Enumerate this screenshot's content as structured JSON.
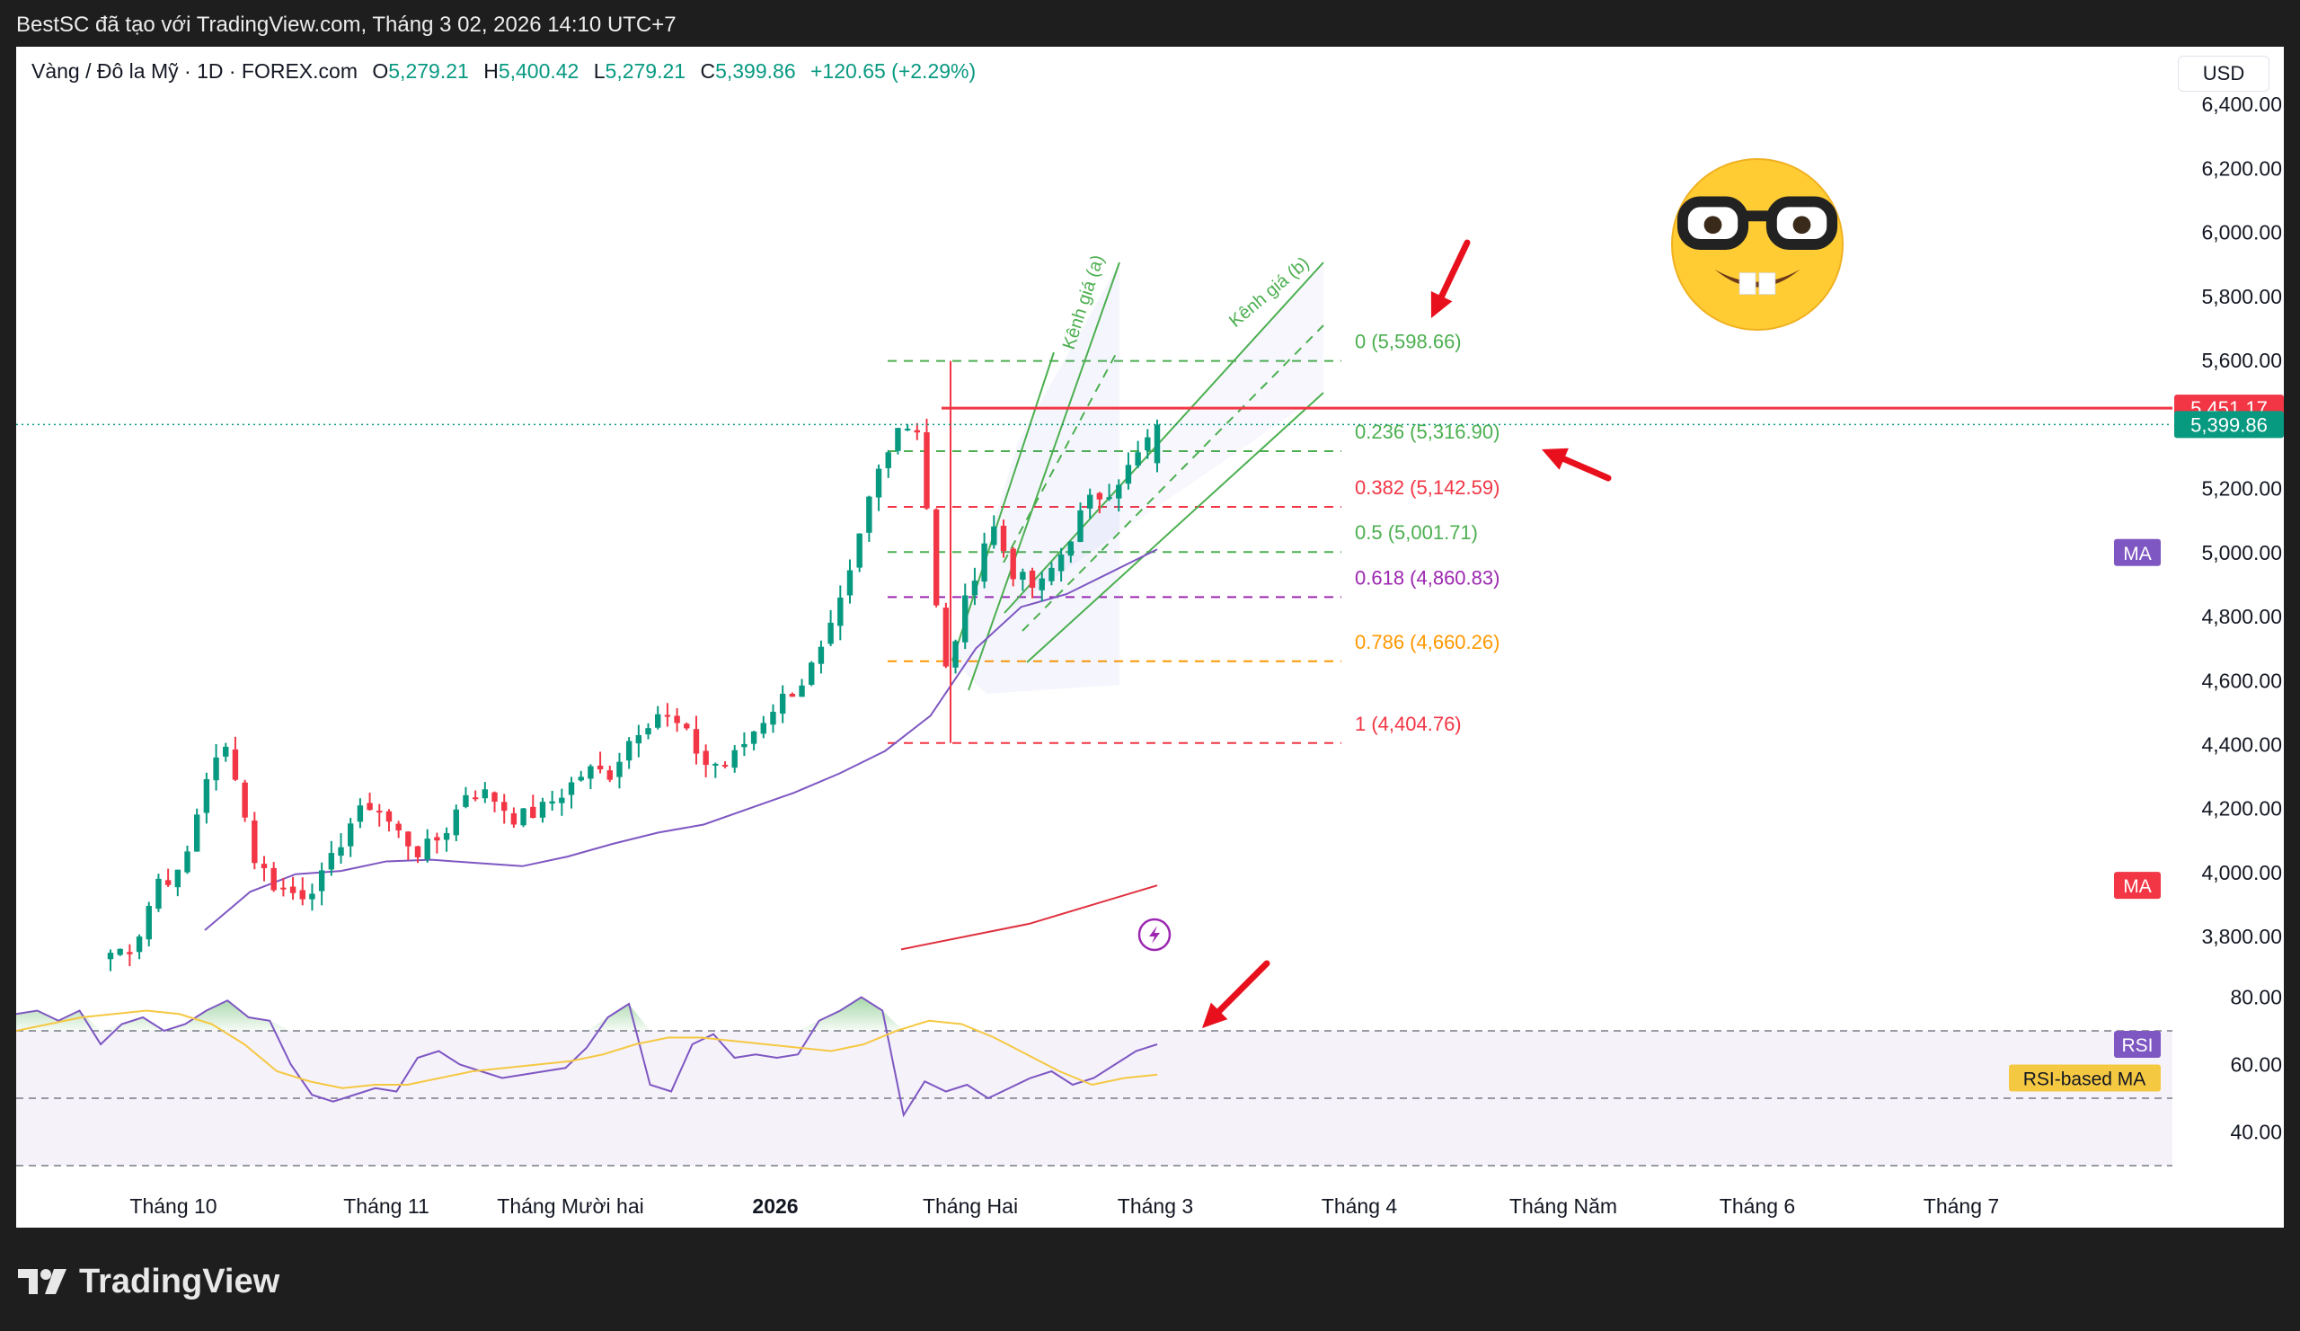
{
  "header": {
    "title": "BestSC đã tạo với TradingView.com, Tháng 3 02, 2026 14:10 UTC+7"
  },
  "legend": {
    "symbol": "Vàng / Đô la Mỹ · 1D · FOREX.com",
    "o_label": "O",
    "o": "5,279.21",
    "h_label": "H",
    "h": "5,400.42",
    "l_label": "L",
    "l": "5,279.21",
    "c_label": "C",
    "c": "5,399.86",
    "change": "+120.65 (+2.29%)"
  },
  "currency": "USD",
  "footer": {
    "brand": "TradingView"
  },
  "colors": {
    "up": "#089981",
    "down": "#f23645",
    "ma_short": "#7e57c2",
    "ma_long": "#e0303f",
    "rsi": "#7e57c2",
    "rsi_ma": "#f5c842",
    "resistance": "#f23645"
  },
  "chart_data": {
    "type": "candlestick",
    "instrument": "Vàng / Đô la Mỹ",
    "timeframe": "1D",
    "price_axis": {
      "ticks": [
        "6,400.00",
        "6,200.00",
        "6,000.00",
        "5,800.00",
        "5,600.00",
        "5,200.00",
        "5,000.00",
        "4,800.00",
        "4,600.00",
        "4,400.00",
        "4,200.00",
        "4,000.00",
        "3,800.00"
      ],
      "range": [
        3660,
        6440
      ]
    },
    "time_axis": {
      "labels": [
        "Tháng 10",
        "Tháng 11",
        "Tháng Mười hai",
        "2026",
        "Tháng Hai",
        "Tháng 3",
        "Tháng 4",
        "Tháng Năm",
        "Tháng 6",
        "Tháng 7"
      ]
    },
    "price_labels": [
      {
        "text": "5,451.17",
        "value": 5451.17,
        "color": "#f23645"
      },
      {
        "text": "5,399.86",
        "value": 5399.86,
        "color": "#089981"
      }
    ],
    "ma_badges": [
      {
        "text": "MA",
        "value": 5000,
        "color": "#7e57c2"
      },
      {
        "text": "MA",
        "value": 3960,
        "color": "#f23645"
      }
    ],
    "candle_keypoints": [
      3750,
      3770,
      3980,
      3990,
      4300,
      4400,
      4050,
      3950,
      3930,
      3990,
      4150,
      4220,
      4130,
      4060,
      4120,
      4260,
      4240,
      4170,
      4190,
      4250,
      4320,
      4310,
      4440,
      4500,
      4450,
      4340,
      4340,
      4440,
      4530,
      4590,
      4700,
      4900,
      5200,
      5400,
      5390,
      4600,
      4860,
      5100,
      4930,
      4880,
      5000,
      5150,
      5200,
      5279,
      5399.86
    ],
    "series": [
      {
        "name": "MA",
        "type": "line",
        "color": "#7e57c2",
        "values": [
          3820,
          3940,
          3995,
          4005,
          4035,
          4040,
          4030,
          4020,
          4050,
          4090,
          4125,
          4150,
          4200,
          4250,
          4310,
          4380,
          4490,
          4700,
          4830,
          4870,
          4940,
          5010
        ]
      },
      {
        "name": "MA",
        "type": "line",
        "color": "#e0303f",
        "values": [
          3760,
          3840,
          3960
        ]
      }
    ],
    "fibonacci": [
      {
        "ratio": "0",
        "label": "0 (5,598.66)",
        "value": 5598.66,
        "color": "#4caf50"
      },
      {
        "ratio": "0.236",
        "label": "0.236 (5,316.90)",
        "value": 5316.9,
        "color": "#4caf50"
      },
      {
        "ratio": "0.382",
        "label": "0.382 (5,142.59)",
        "value": 5142.59,
        "color": "#f23645"
      },
      {
        "ratio": "0.5",
        "label": "0.5 (5,001.71)",
        "value": 5001.71,
        "color": "#4caf50"
      },
      {
        "ratio": "0.618",
        "label": "0.618 (4,860.83)",
        "value": 4860.83,
        "color": "#9c27b0"
      },
      {
        "ratio": "0.786",
        "label": "0.786 (4,660.26)",
        "value": 4660.26,
        "color": "#ff9800"
      },
      {
        "ratio": "1",
        "label": "1 (4,404.76)",
        "value": 4404.76,
        "color": "#f23645"
      }
    ],
    "channels": [
      {
        "label": "Kênh giá (a)"
      },
      {
        "label": "Kênh giá (b)"
      }
    ],
    "resistance": 5451.17,
    "rsi": {
      "name": "RSI",
      "ma_name": "RSI-based MA",
      "ticks": [
        "80.00",
        "60.00",
        "40.00"
      ],
      "range": [
        30,
        82
      ],
      "values": [
        75,
        76,
        73,
        76,
        66,
        72,
        74,
        70,
        72,
        76,
        79,
        74,
        73,
        60,
        51,
        49,
        51,
        53,
        52,
        62,
        64,
        60,
        58,
        56,
        57,
        58,
        59,
        65,
        74,
        78,
        54,
        52,
        66,
        69,
        62,
        63,
        62,
        63,
        73,
        76,
        80,
        76,
        45,
        55,
        52,
        54,
        50,
        53,
        56,
        58,
        54,
        56,
        60,
        64,
        66
      ],
      "ma_values": [
        70,
        72,
        74,
        75,
        76,
        75,
        72,
        66,
        58,
        55,
        53,
        54,
        54,
        56,
        58,
        59,
        60,
        61,
        63,
        66,
        68,
        68,
        67,
        66,
        65,
        64,
        66,
        70,
        73,
        72,
        68,
        63,
        58,
        54,
        56,
        57
      ]
    },
    "annotations": {
      "arrows": 3
    }
  }
}
